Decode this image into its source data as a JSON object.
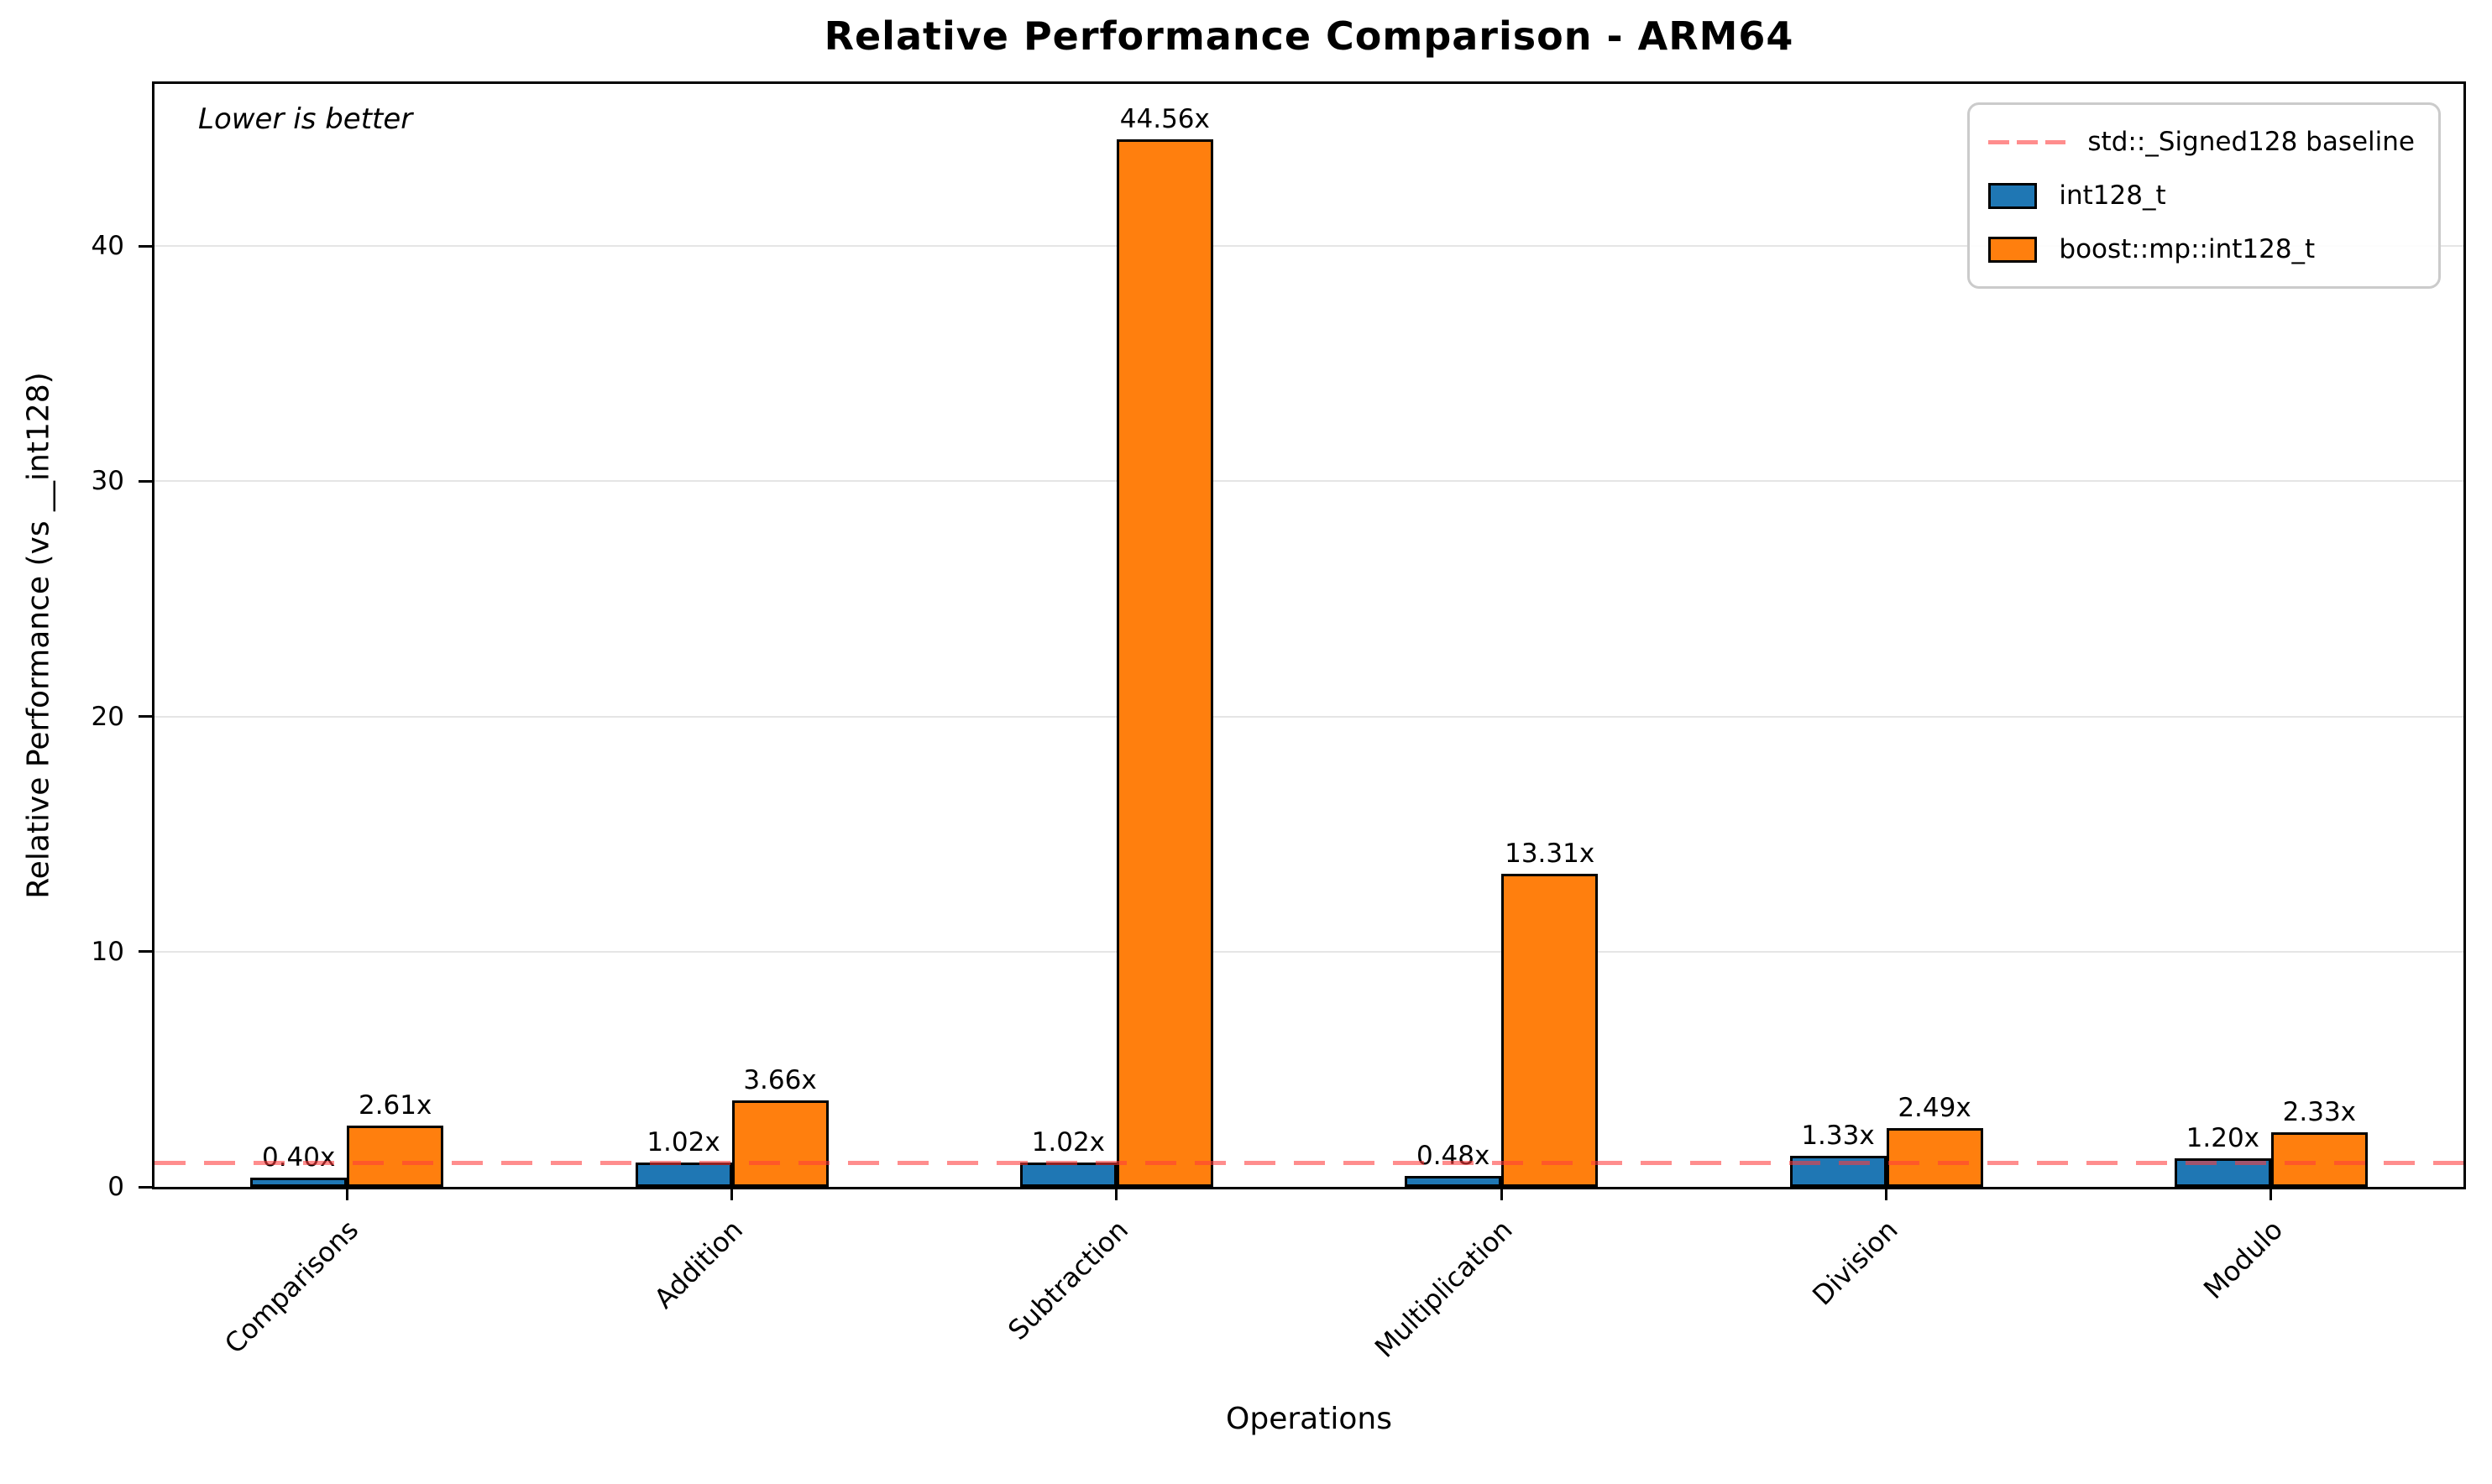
{
  "figure": {
    "title": "Relative Performance Comparison - ARM64",
    "xlabel": "Operations",
    "ylabel": "Relative Performance (vs __int128)",
    "annotation": "Lower is better"
  },
  "chart_data": {
    "type": "bar",
    "title": "Relative Performance Comparison - ARM64",
    "xlabel": "Operations",
    "ylabel": "Relative Performance (vs __int128)",
    "annotation": "Lower is better",
    "categories": [
      "Comparisons",
      "Addition",
      "Subtraction",
      "Multiplication",
      "Division",
      "Modulo"
    ],
    "series": [
      {
        "name": "int128_t",
        "color": "#1f77b4",
        "values": [
          0.4,
          1.02,
          1.02,
          0.48,
          1.33,
          1.2
        ]
      },
      {
        "name": "boost::mp::int128_t",
        "color": "#ff7f0e",
        "values": [
          2.61,
          3.66,
          44.56,
          13.31,
          2.49,
          2.33
        ]
      }
    ],
    "value_label_suffix": "x",
    "value_labels": [
      [
        "0.40x",
        "1.02x",
        "1.02x",
        "0.48x",
        "1.33x",
        "1.20x"
      ],
      [
        "2.61x",
        "3.66x",
        "44.56x",
        "13.31x",
        "2.49x",
        "2.33x"
      ]
    ],
    "baseline": {
      "value": 1.0,
      "label": "std::_Signed128 baseline",
      "color": "rgba(255,59,59,0.58)",
      "style": "dashed"
    },
    "yticks": [
      0,
      10,
      20,
      30,
      40
    ],
    "ylim": [
      0,
      46.9
    ],
    "grid": "horizontal",
    "legend_position": "upper right",
    "bar_edge_color": "#000000"
  }
}
